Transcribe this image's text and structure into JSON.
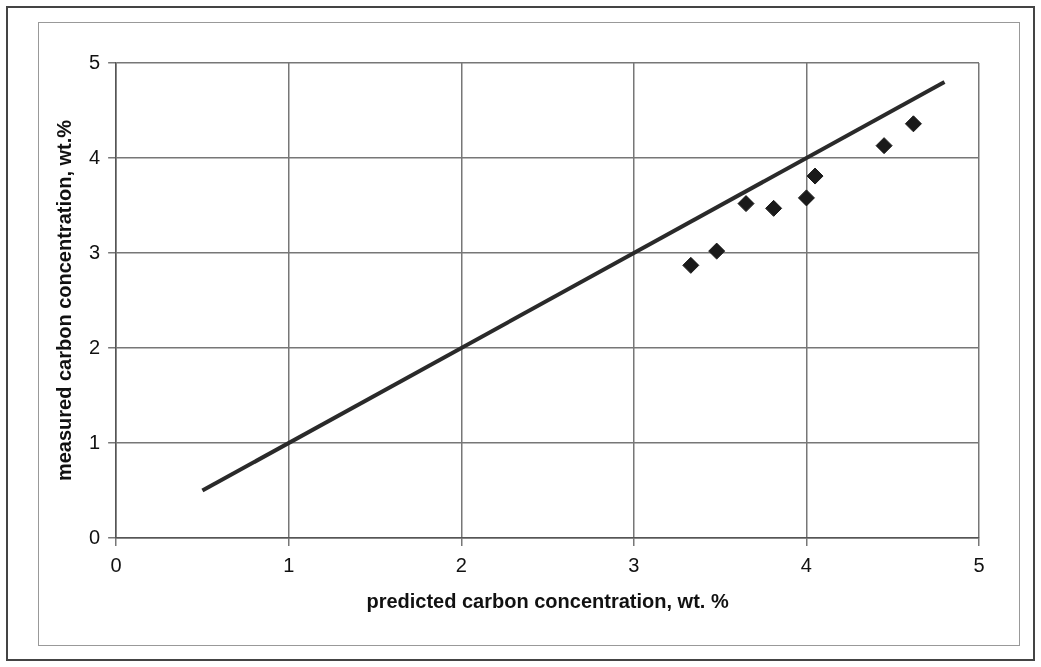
{
  "chart_data": {
    "type": "scatter",
    "xlabel": "predicted carbon concentration, wt. %",
    "ylabel": "measured carbon concentration, wt.%",
    "xlim": [
      0,
      5
    ],
    "ylim": [
      0,
      5
    ],
    "xticks": [
      0,
      1,
      2,
      3,
      4,
      5
    ],
    "yticks": [
      0,
      1,
      2,
      3,
      4,
      5
    ],
    "grid": true,
    "legend": false,
    "series": [
      {
        "marker": "diamond",
        "color": "#1a1a1a",
        "x": [
          3.33,
          3.48,
          3.65,
          3.81,
          4.0,
          4.05,
          4.45,
          4.62
        ],
        "values": [
          2.87,
          3.02,
          3.52,
          3.47,
          3.58,
          3.81,
          4.13,
          4.36
        ]
      },
      {
        "type": "line",
        "marker": "none",
        "color": "#2a2a2a",
        "x": [
          0.5,
          4.8
        ],
        "values": [
          0.5,
          4.8
        ]
      }
    ]
  }
}
